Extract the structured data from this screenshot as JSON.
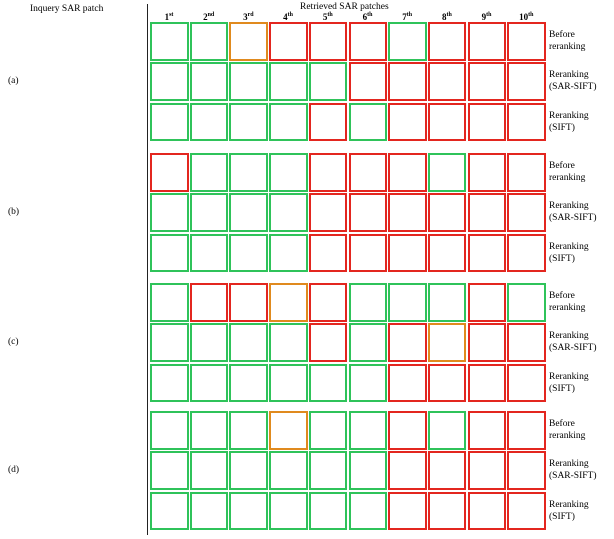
{
  "header": {
    "query_title": "Inquery SAR patch",
    "retrieved_title": "Retrieved SAR patches",
    "ranks": [
      {
        "num": "1",
        "sup": "st"
      },
      {
        "num": "2",
        "sup": "nd"
      },
      {
        "num": "3",
        "sup": "rd"
      },
      {
        "num": "4",
        "sup": "th"
      },
      {
        "num": "5",
        "sup": "th"
      },
      {
        "num": "6",
        "sup": "th"
      },
      {
        "num": "7",
        "sup": "th"
      },
      {
        "num": "8",
        "sup": "th"
      },
      {
        "num": "9",
        "sup": "th"
      },
      {
        "num": "10",
        "sup": "th"
      }
    ]
  },
  "row_labels": [
    [
      "Before",
      "reranking"
    ],
    [
      "Reranking",
      "(SAR-SIFT)"
    ],
    [
      "Reranking",
      "(SIFT)"
    ]
  ],
  "groups": [
    {
      "label": "(a)",
      "borders": [
        [
          "#2fc35a",
          "#2fc35a",
          "#e08a1e",
          "#e3261f",
          "#e3261f",
          "#e3261f",
          "#2fc35a",
          "#e3261f",
          "#e3261f",
          "#e3261f"
        ],
        [
          "#2fc35a",
          "#2fc35a",
          "#2fc35a",
          "#2fc35a",
          "#2fc35a",
          "#e3261f",
          "#e3261f",
          "#e3261f",
          "#e3261f",
          "#e3261f"
        ],
        [
          "#2fc35a",
          "#2fc35a",
          "#2fc35a",
          "#2fc35a",
          "#e3261f",
          "#2fc35a",
          "#e3261f",
          "#e3261f",
          "#e3261f",
          "#e3261f"
        ]
      ]
    },
    {
      "label": "(b)",
      "borders": [
        [
          "#e3261f",
          "#2fc35a",
          "#2fc35a",
          "#2fc35a",
          "#e3261f",
          "#e3261f",
          "#e3261f",
          "#2fc35a",
          "#e3261f",
          "#e3261f"
        ],
        [
          "#2fc35a",
          "#2fc35a",
          "#2fc35a",
          "#2fc35a",
          "#e3261f",
          "#e3261f",
          "#e3261f",
          "#e3261f",
          "#e3261f",
          "#e3261f"
        ],
        [
          "#2fc35a",
          "#2fc35a",
          "#2fc35a",
          "#2fc35a",
          "#e3261f",
          "#e3261f",
          "#e3261f",
          "#e3261f",
          "#e3261f",
          "#e3261f"
        ]
      ]
    },
    {
      "label": "(c)",
      "borders": [
        [
          "#2fc35a",
          "#e3261f",
          "#e3261f",
          "#e08a1e",
          "#e3261f",
          "#2fc35a",
          "#2fc35a",
          "#2fc35a",
          "#e3261f",
          "#2fc35a"
        ],
        [
          "#2fc35a",
          "#2fc35a",
          "#2fc35a",
          "#2fc35a",
          "#e3261f",
          "#2fc35a",
          "#e3261f",
          "#e08a1e",
          "#e3261f",
          "#e3261f"
        ],
        [
          "#2fc35a",
          "#2fc35a",
          "#2fc35a",
          "#2fc35a",
          "#2fc35a",
          "#2fc35a",
          "#e3261f",
          "#e3261f",
          "#e3261f",
          "#e3261f"
        ]
      ]
    },
    {
      "label": "(d)",
      "borders": [
        [
          "#2fc35a",
          "#2fc35a",
          "#2fc35a",
          "#e08a1e",
          "#2fc35a",
          "#2fc35a",
          "#e3261f",
          "#2fc35a",
          "#e3261f",
          "#e3261f"
        ],
        [
          "#2fc35a",
          "#2fc35a",
          "#2fc35a",
          "#2fc35a",
          "#2fc35a",
          "#2fc35a",
          "#e3261f",
          "#e3261f",
          "#e3261f",
          "#e3261f"
        ],
        [
          "#2fc35a",
          "#2fc35a",
          "#2fc35a",
          "#2fc35a",
          "#2fc35a",
          "#2fc35a",
          "#e3261f",
          "#e3261f",
          "#e3261f",
          "#e3261f"
        ]
      ]
    }
  ]
}
